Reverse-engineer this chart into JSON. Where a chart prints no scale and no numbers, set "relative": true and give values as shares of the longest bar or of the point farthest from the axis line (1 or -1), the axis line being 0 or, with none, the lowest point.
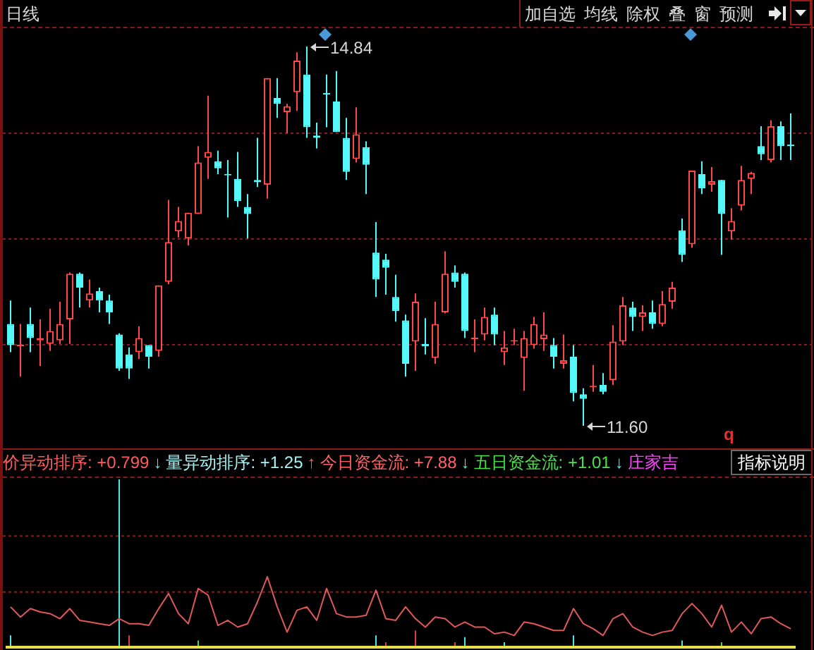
{
  "chart_data": [
    {
      "type": "candlestick",
      "title": "日线",
      "categories": [
        null,
        null,
        null,
        null,
        null,
        null,
        null,
        null,
        null,
        null,
        null,
        null,
        null,
        null,
        null,
        null,
        null,
        null,
        null,
        null,
        null,
        null,
        null,
        null,
        null,
        null,
        null,
        null,
        null,
        null,
        null,
        null,
        null,
        null,
        null,
        null,
        null,
        null,
        null,
        null,
        null,
        null,
        null,
        null,
        null,
        null,
        null,
        null,
        null,
        null,
        null,
        null,
        null,
        null,
        null,
        null,
        null,
        null,
        null,
        null,
        null,
        null,
        null,
        null,
        null,
        null,
        null,
        null,
        null,
        null,
        null,
        null,
        null,
        null,
        null,
        null,
        null,
        null,
        null,
        null
      ],
      "ohlc": [
        [
          12.47,
          12.67,
          12.23,
          12.29
        ],
        [
          12.28,
          12.47,
          12.02,
          12.29
        ],
        [
          12.47,
          12.61,
          12.23,
          12.35
        ],
        [
          12.33,
          12.51,
          12.11,
          12.35
        ],
        [
          12.3,
          12.6,
          12.24,
          12.41
        ],
        [
          12.33,
          12.66,
          12.3,
          12.47
        ],
        [
          12.51,
          12.91,
          12.3,
          12.9
        ],
        [
          12.9,
          12.91,
          12.61,
          12.78
        ],
        [
          12.67,
          12.85,
          12.61,
          12.73
        ],
        [
          12.75,
          12.78,
          12.57,
          12.67
        ],
        [
          12.67,
          12.72,
          12.47,
          12.57
        ],
        [
          12.38,
          12.39,
          12.07,
          12.09
        ],
        [
          12.21,
          12.27,
          12.0,
          12.09
        ],
        [
          12.23,
          12.45,
          12.17,
          12.35
        ],
        [
          12.29,
          12.29,
          12.09,
          12.19
        ],
        [
          12.24,
          12.8,
          12.19,
          12.8
        ],
        [
          12.83,
          13.53,
          12.81,
          13.17
        ],
        [
          13.26,
          13.47,
          13.21,
          13.35
        ],
        [
          13.2,
          13.42,
          13.14,
          13.42
        ],
        [
          13.41,
          13.99,
          13.41,
          13.85
        ],
        [
          13.89,
          14.42,
          13.71,
          13.94
        ],
        [
          13.86,
          13.95,
          13.75,
          13.8
        ],
        [
          13.75,
          13.87,
          13.38,
          13.74
        ],
        [
          13.71,
          13.94,
          13.47,
          13.52
        ],
        [
          13.47,
          13.58,
          13.2,
          13.41
        ],
        [
          13.7,
          14.06,
          13.64,
          13.68
        ],
        [
          13.66,
          14.57,
          13.54,
          14.57
        ],
        [
          14.4,
          14.57,
          14.23,
          14.35
        ],
        [
          14.28,
          14.35,
          14.1,
          14.33
        ],
        [
          14.45,
          14.79,
          14.29,
          14.72
        ],
        [
          14.6,
          14.84,
          14.06,
          14.15
        ],
        [
          14.08,
          14.19,
          13.97,
          14.06
        ],
        [
          14.43,
          14.6,
          14.15,
          14.43
        ],
        [
          14.37,
          14.63,
          14.11,
          14.11
        ],
        [
          14.06,
          14.23,
          13.7,
          13.77
        ],
        [
          13.88,
          14.32,
          13.85,
          14.09
        ],
        [
          13.98,
          14.03,
          13.58,
          13.83
        ],
        [
          13.08,
          13.34,
          12.7,
          12.85
        ],
        [
          13.02,
          13.07,
          12.72,
          12.95
        ],
        [
          12.7,
          12.89,
          12.49,
          12.58
        ],
        [
          12.5,
          12.55,
          12.02,
          12.13
        ],
        [
          12.32,
          12.73,
          12.07,
          12.66
        ],
        [
          12.3,
          12.52,
          12.21,
          12.28
        ],
        [
          12.18,
          12.66,
          12.13,
          12.47
        ],
        [
          12.57,
          13.09,
          12.56,
          12.9
        ],
        [
          12.91,
          12.97,
          12.78,
          12.83
        ],
        [
          12.9,
          12.91,
          12.35,
          12.41
        ],
        [
          12.34,
          12.51,
          12.23,
          12.35
        ],
        [
          12.38,
          12.61,
          12.33,
          12.53
        ],
        [
          12.55,
          12.61,
          12.29,
          12.38
        ],
        [
          12.23,
          12.41,
          12.12,
          12.27
        ],
        [
          12.32,
          12.43,
          12.29,
          12.33
        ],
        [
          12.18,
          12.41,
          11.9,
          12.35
        ],
        [
          12.29,
          12.53,
          12.26,
          12.47
        ],
        [
          12.34,
          12.57,
          12.24,
          12.38
        ],
        [
          12.29,
          12.35,
          12.09,
          12.19
        ],
        [
          12.13,
          12.38,
          12.09,
          12.16
        ],
        [
          12.19,
          12.29,
          11.81,
          11.88
        ],
        [
          11.87,
          11.92,
          11.6,
          11.83
        ],
        [
          11.93,
          12.12,
          11.89,
          11.94
        ],
        [
          11.95,
          12.05,
          11.87,
          11.89
        ],
        [
          11.99,
          12.46,
          11.95,
          12.32
        ],
        [
          12.32,
          12.7,
          12.29,
          12.63
        ],
        [
          12.61,
          12.66,
          12.41,
          12.53
        ],
        [
          12.53,
          12.63,
          12.41,
          12.57
        ],
        [
          12.57,
          12.67,
          12.43,
          12.47
        ],
        [
          12.47,
          12.75,
          12.45,
          12.64
        ],
        [
          12.66,
          12.83,
          12.6,
          12.78
        ],
        [
          13.27,
          13.37,
          13.0,
          13.06
        ],
        [
          13.15,
          13.78,
          13.12,
          13.78
        ],
        [
          13.75,
          13.86,
          13.58,
          13.63
        ],
        [
          13.66,
          13.81,
          13.6,
          13.69
        ],
        [
          13.7,
          13.7,
          13.06,
          13.41
        ],
        [
          13.26,
          13.46,
          13.19,
          13.35
        ],
        [
          13.48,
          13.82,
          13.44,
          13.7
        ],
        [
          13.71,
          13.77,
          13.58,
          13.76
        ],
        [
          13.99,
          14.16,
          13.87,
          13.92
        ],
        [
          13.87,
          14.21,
          13.85,
          14.16
        ],
        [
          14.16,
          14.2,
          13.87,
          13.99
        ],
        [
          13.99,
          14.27,
          13.87,
          13.99
        ]
      ],
      "colors": [
        "#54f8f8",
        "#ff4848",
        "#54f8f8",
        "#ff4848",
        "#ff4848",
        "#ff4848",
        "#ff4848",
        "#54f8f8",
        "#ff4848",
        "#54f8f8",
        "#54f8f8",
        "#54f8f8",
        "#54f8f8",
        "#ff4848",
        "#54f8f8",
        "#ff4848",
        "#ff4848",
        "#ff4848",
        "#ff4848",
        "#ff4848",
        "#ff4848",
        "#54f8f8",
        "#54f8f8",
        "#54f8f8",
        "#54f8f8",
        "#54f8f8",
        "#ff4848",
        "#54f8f8",
        "#ff4848",
        "#ff4848",
        "#54f8f8",
        "#54f8f8",
        "#54f8f8",
        "#54f8f8",
        "#54f8f8",
        "#ff4848",
        "#54f8f8",
        "#54f8f8",
        "#54f8f8",
        "#54f8f8",
        "#54f8f8",
        "#ff4848",
        "#54f8f8",
        "#ff4848",
        "#ff4848",
        "#54f8f8",
        "#54f8f8",
        "#ff4848",
        "#ff4848",
        "#54f8f8",
        "#ff4848",
        "#ff4848",
        "#ff4848",
        "#ff4848",
        "#ff4848",
        "#54f8f8",
        "#ff4848",
        "#54f8f8",
        "#54f8f8",
        "#ff4848",
        "#54f8f8",
        "#ff4848",
        "#ff4848",
        "#54f8f8",
        "#ff4848",
        "#54f8f8",
        "#ff4848",
        "#ff4848",
        "#54f8f8",
        "#ff4848",
        "#54f8f8",
        "#ff4848",
        "#54f8f8",
        "#ff4848",
        "#ff4848",
        "#ff4848",
        "#54f8f8",
        "#ff4848",
        "#54f8f8",
        "#54f8f8"
      ],
      "yticks": [
        {
          "value": 14.1,
          "label": null
        },
        {
          "value": 13.2,
          "label": null
        },
        {
          "value": 12.3,
          "label": null
        }
      ],
      "grid": "y",
      "tick_labels": false,
      "annotations": [
        "14.84",
        "11.60",
        "q",
        "加自选",
        "均线",
        "除权",
        "叠",
        "窗",
        "预测"
      ]
    },
    {
      "type": "line",
      "relative": true,
      "categories": [
        null,
        null,
        null,
        null,
        null,
        null,
        null,
        null,
        null,
        null,
        null,
        null,
        null,
        null,
        null,
        null,
        null,
        null,
        null,
        null,
        null,
        null,
        null,
        null,
        null,
        null,
        null,
        null,
        null,
        null,
        null,
        null,
        null,
        null,
        null,
        null,
        null,
        null,
        null,
        null,
        null,
        null,
        null,
        null,
        null,
        null,
        null,
        null,
        null,
        null,
        null,
        null,
        null,
        null,
        null,
        null,
        null,
        null,
        null,
        null,
        null,
        null,
        null,
        null,
        null,
        null,
        null,
        null,
        null,
        null,
        null,
        null,
        null,
        null,
        null,
        null,
        null,
        null,
        null,
        null
      ],
      "marker": "none",
      "tick_labels": false,
      "series": [
        {
          "color": "#e05858",
          "values": [
            0.24,
            0.18,
            0.23,
            0.21,
            0.2,
            0.17,
            0.23,
            0.16,
            0.15,
            0.14,
            0.13,
            0.17,
            0.14,
            0.14,
            0.13,
            0.23,
            0.32,
            0.2,
            0.14,
            0.35,
            0.31,
            0.13,
            0.16,
            0.12,
            0.14,
            0.27,
            0.42,
            0.24,
            0.09,
            0.22,
            0.24,
            0.16,
            0.35,
            0.2,
            0.18,
            0.18,
            0.19,
            0.34,
            0.17,
            0.16,
            0.24,
            0.17,
            0.12,
            0.18,
            0.17,
            0.12,
            0.15,
            0.12,
            0.12,
            0.08,
            0.09,
            0.07,
            0.15,
            0.14,
            0.12,
            0.1,
            0.1,
            0.23,
            0.14,
            0.11,
            0.07,
            0.17,
            0.2,
            0.12,
            0.09,
            0.07,
            0.09,
            0.1,
            0.2,
            0.26,
            0.2,
            0.12,
            0.25,
            0.09,
            0.15,
            0.08,
            0.17,
            0.18,
            0.14,
            0.11
          ]
        },
        {
          "type": "bar",
          "colors": [
            "#48e8e8",
            "#48e8e8",
            "#48e8e8",
            "#48e8e8",
            "#48e8e8",
            "#48e8e8",
            "#48e8e8",
            "#48e8e8",
            "#48e8e8",
            "#48e8e8",
            "#48e8e8",
            "#48e8e8",
            "#e03c3c",
            "#48e8e8",
            "#48e8e8",
            "#48e8e8",
            "#48e8e8",
            "#48e8e8",
            "#48e8e8",
            "#48d848",
            "#48e8e8",
            "#48e8e8",
            "#48e8e8",
            "#48e8e8",
            "#48e8e8",
            "#48e8e8",
            "#48e8e8",
            "#48e8e8",
            "#48e8e8",
            "#48e8e8",
            "#48e8e8",
            "#48e8e8",
            "#48e8e8",
            "#48e8e8",
            "#48e8e8",
            "#48e8e8",
            "#48e8e8",
            "#48e8e8",
            "#e03c3c",
            "#48e8e8",
            "#48e8e8",
            "#e03c3c",
            "#48e8e8",
            "#48e8e8",
            "#48e8e8",
            "#e03c3c",
            "#48e8e8",
            "#48e8e8",
            "#48e8e8",
            "#48e8e8",
            "#48e8e8",
            "#48e8e8",
            "#48e8e8",
            "#48e8e8",
            "#48e8e8",
            "#48e8e8",
            "#48e8e8",
            "#48e8e8",
            "#48e8e8",
            "#48e8e8",
            "#48e8e8",
            "#48e8e8",
            "#48e8e8",
            "#48e8e8",
            "#48e8e8",
            "#48e8e8",
            "#48e8e8",
            "#48e8e8",
            "#48e8e8",
            "#48e8e8",
            "#48e8e8",
            "#48e8e8",
            "#48d848",
            "#48e8e8",
            "#48e8e8",
            "#48e8e8",
            "#48e8e8",
            "#48e8e8",
            "#48e8e8",
            "#48e8e8"
          ],
          "values": [
            0.07,
            null,
            null,
            null,
            null,
            null,
            null,
            null,
            null,
            null,
            null,
            1,
            0.07,
            null,
            null,
            null,
            null,
            null,
            null,
            0.04,
            null,
            null,
            null,
            null,
            null,
            null,
            null,
            null,
            null,
            null,
            null,
            null,
            null,
            null,
            null,
            null,
            null,
            0.07,
            0.03,
            null,
            null,
            0.1,
            null,
            null,
            null,
            0.03,
            0.06,
            null,
            null,
            null,
            0.03,
            null,
            null,
            null,
            null,
            null,
            null,
            0.07,
            null,
            null,
            null,
            null,
            null,
            null,
            null,
            null,
            null,
            null,
            0.04,
            null,
            null,
            null,
            0.03,
            null,
            null,
            null,
            null,
            null,
            null,
            null
          ]
        }
      ],
      "ref_lines": [
        {
          "axis": "y",
          "value": 0.67,
          "color": "#8a1a1a",
          "line_style": "dashed"
        },
        {
          "axis": "y",
          "value": 0.33,
          "color": "#8a1a1a",
          "line_style": "dashed"
        }
      ],
      "annotations": [
        "价异动排序: +0.799",
        "↓",
        "量异动排序: +1.25",
        "↑",
        "今日资金流: +7.88",
        "↓",
        "五日资金流: +1.01",
        "↓",
        "庄家吉",
        "指标说明"
      ]
    }
  ]
}
